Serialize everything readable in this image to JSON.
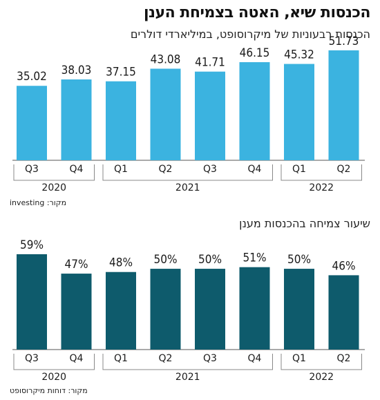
{
  "header": {
    "title": "הכנסות שיא, האטה בצמיחת הענן",
    "subtitle": "הכנסות רבעוניות של מיקרוסופט, במיליארדי דולרים"
  },
  "sources": {
    "top": "מקור: investing",
    "bottom": "מקור: דוחות מיקרוסופט"
  },
  "section2": {
    "title": "שיעור צמיחה בהכנסות מענן"
  },
  "chart_data": [
    {
      "type": "bar",
      "categories": [
        "Q3",
        "Q4",
        "Q1",
        "Q2",
        "Q3",
        "Q4",
        "Q1",
        "Q2"
      ],
      "year_groups": [
        {
          "label": "2020",
          "start": 0,
          "end": 1
        },
        {
          "label": "2021",
          "start": 2,
          "end": 5
        },
        {
          "label": "2022",
          "start": 6,
          "end": 7
        }
      ],
      "values": [
        35.02,
        38.03,
        37.15,
        43.08,
        41.71,
        46.15,
        45.32,
        51.73
      ],
      "labels": [
        "35.02",
        "38.03",
        "37.15",
        "43.08",
        "41.71",
        "46.15",
        "45.32",
        "51.73"
      ],
      "title": "הכנסות שיא, האטה בצמיחת הענן",
      "subtitle": "הכנסות רבעוניות של מיקרוסופט, במיליארדי דולרים",
      "xlabel": "",
      "ylabel": "",
      "ylim": [
        0,
        52
      ],
      "grid": false,
      "color": "#3bb3e0"
    },
    {
      "type": "bar",
      "categories": [
        "Q3",
        "Q4",
        "Q1",
        "Q2",
        "Q3",
        "Q4",
        "Q1",
        "Q2"
      ],
      "year_groups": [
        {
          "label": "2020",
          "start": 0,
          "end": 1
        },
        {
          "label": "2021",
          "start": 2,
          "end": 5
        },
        {
          "label": "2022",
          "start": 6,
          "end": 7
        }
      ],
      "values": [
        59,
        47,
        48,
        50,
        50,
        51,
        50,
        46
      ],
      "labels": [
        "59%",
        "47%",
        "48%",
        "50%",
        "50%",
        "51%",
        "50%",
        "46%"
      ],
      "title": "שיעור צמיחה בהכנסות מענן",
      "xlabel": "",
      "ylabel": "",
      "ylim": [
        0,
        59
      ],
      "grid": false,
      "color": "#0e5b6c"
    }
  ]
}
